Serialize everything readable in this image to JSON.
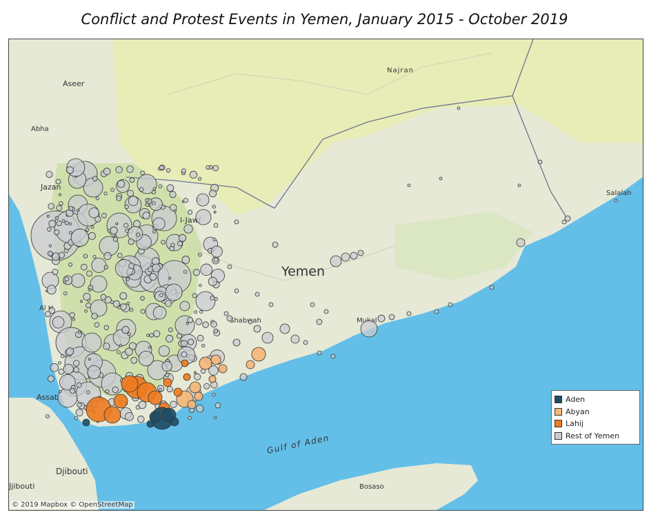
{
  "title": "Conflict and Protest Events in Yemen, January 2015 - October 2019",
  "places": {
    "najran": "Najran",
    "aseer": "Aseer",
    "abha": "Abha",
    "jazan": "Jazan",
    "al_jawf": "l-Jawf",
    "yemen": "Yemen",
    "salalah": "Salalah",
    "al_h": "Al H",
    "shabwah": "Shabwah",
    "mukalla": "Mukal",
    "assab": "Assab",
    "djibouti_country": "Djibouti",
    "djibouti_city": "Jjibouti",
    "gulf": "Gulf of Aden",
    "bosaso": "Bosaso"
  },
  "legend": {
    "items": [
      {
        "label": "Aden",
        "color": "#1e4d63"
      },
      {
        "label": "Abyan",
        "color": "#f5b77a"
      },
      {
        "label": "Lahij",
        "color": "#ee7a1f"
      },
      {
        "label": "Rest of Yemen",
        "color": "#c9ccd0"
      }
    ]
  },
  "attribution": "© 2019 Mapbox © OpenStreetMap",
  "colors": {
    "sea": "#63bfe8",
    "land": "#e6e9d6",
    "desert": "#e7eab8",
    "highlands": "#d2e2b2",
    "border": "#6b7590"
  }
}
